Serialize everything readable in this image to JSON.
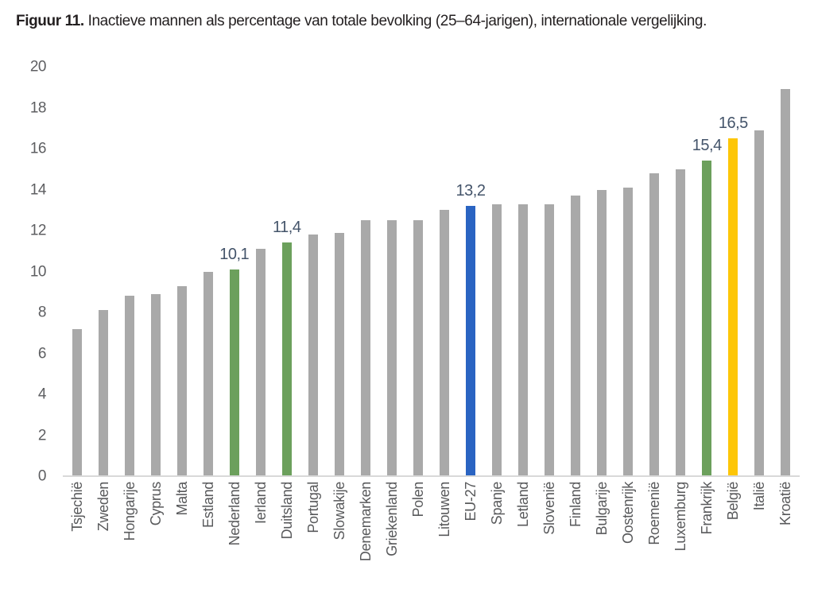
{
  "title": {
    "prefix": "Figuur 11.",
    "text": "Inactieve mannen als percentage van totale bevolking (25–64-jarigen), internationale vergelijking."
  },
  "chart_data": {
    "type": "bar",
    "title": "Figuur 11. Inactieve mannen als percentage van totale bevolking (25–64-jarigen), internationale vergelijking.",
    "categories": [
      "Tsjechië",
      "Zweden",
      "Hongarije",
      "Cyprus",
      "Malta",
      "Estland",
      "Nederland",
      "Ierland",
      "Duitsland",
      "Portugal",
      "Slowakije",
      "Denemarken",
      "Griekenland",
      "Polen",
      "Litouwen",
      "EU-27",
      "Spanje",
      "Letland",
      "Slovenië",
      "Finland",
      "Bulgarije",
      "Oostenrijk",
      "Roemenië",
      "Luxemburg",
      "Frankrijk",
      "België",
      "Italië",
      "Kroatië"
    ],
    "values": [
      7.2,
      8.1,
      8.8,
      8.9,
      9.3,
      10.0,
      10.1,
      11.1,
      11.4,
      11.8,
      11.9,
      12.5,
      12.5,
      12.5,
      13.0,
      13.2,
      13.3,
      13.3,
      13.3,
      13.7,
      14.0,
      14.1,
      14.8,
      15.0,
      15.4,
      16.5,
      16.9,
      18.9
    ],
    "data_labels": {
      "Nederland": "10,1",
      "Duitsland": "11,4",
      "EU-27": "13,2",
      "Frankrijk": "15,4",
      "België": "16,5"
    },
    "highlight_colors": {
      "Nederland": "#6ca05c",
      "Duitsland": "#6ca05c",
      "EU-27": "#2a64c2",
      "Frankrijk": "#6ca05c",
      "België": "#fdc608"
    },
    "default_bar_color": "#a9a9a9",
    "xlabel": "",
    "ylabel": "",
    "ylim": [
      0,
      20
    ],
    "yticks": [
      0,
      2,
      4,
      6,
      8,
      10,
      12,
      14,
      16,
      18,
      20
    ],
    "grid": false,
    "legend": false
  },
  "colors": {
    "title_text": "#231f20",
    "axis_tick_text": "#5d5e61",
    "category_text": "#58595b",
    "value_label_text": "#44546a",
    "baseline": "#d9d9d9",
    "background": "#ffffff"
  }
}
